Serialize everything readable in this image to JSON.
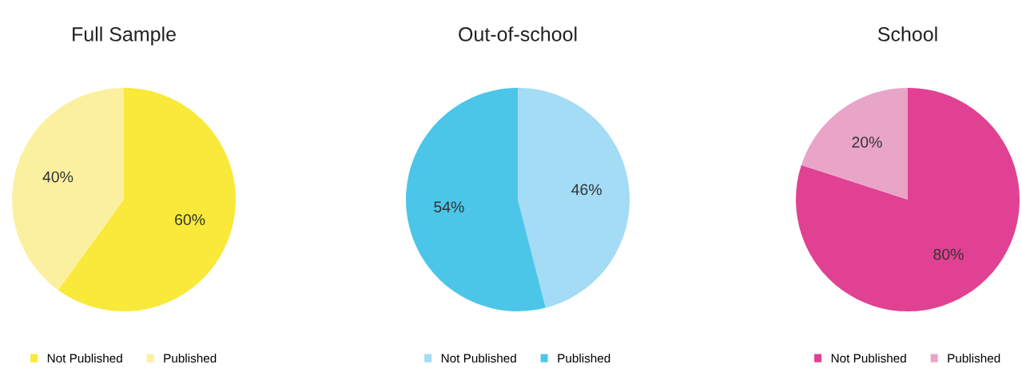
{
  "chart_data": [
    {
      "type": "pie",
      "title": "Full Sample",
      "categories": [
        "Not Published",
        "Published"
      ],
      "values": [
        60,
        40
      ],
      "colors": [
        "#f9e93a",
        "#fbf0a0"
      ],
      "value_labels": [
        "60%",
        "40%"
      ],
      "legend": "bottom"
    },
    {
      "type": "pie",
      "title": "Out-of-school",
      "categories": [
        "Not Published",
        "Published"
      ],
      "values": [
        46,
        54
      ],
      "colors": [
        "#a3dcf4",
        "#4cc6e8"
      ],
      "value_labels": [
        "46%",
        "54%"
      ],
      "legend": "bottom"
    },
    {
      "type": "pie",
      "title": "School",
      "categories": [
        "Not Published",
        "Published"
      ],
      "values": [
        80,
        20
      ],
      "colors": [
        "#e14193",
        "#e9a5c8"
      ],
      "value_labels": [
        "80%",
        "20%"
      ],
      "legend": "bottom"
    }
  ]
}
